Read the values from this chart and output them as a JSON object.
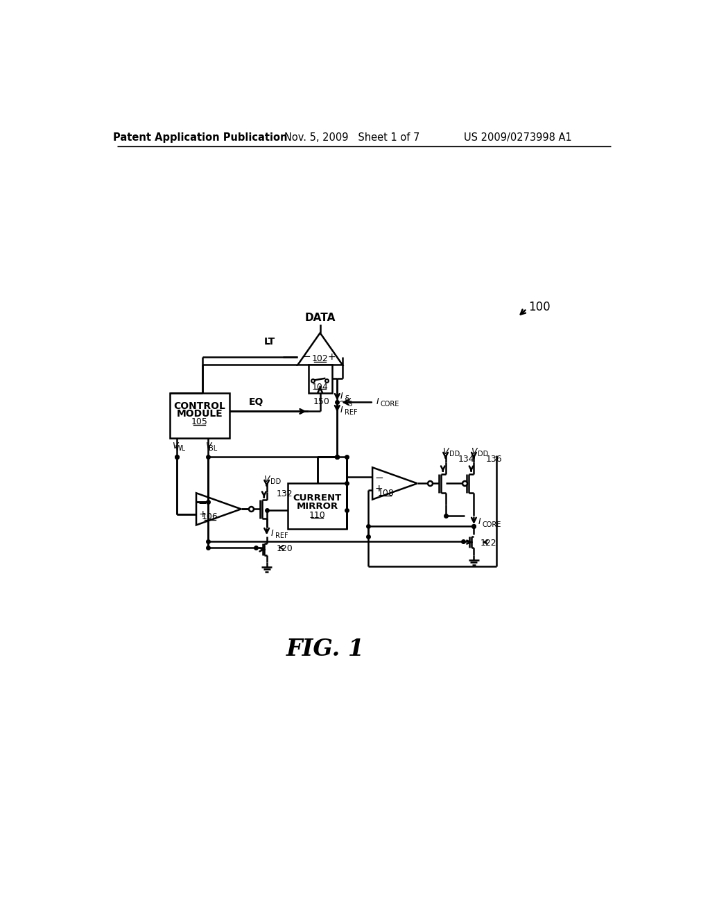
{
  "bg_color": "#ffffff",
  "line_color": "#000000",
  "header_left": "Patent Application Publication",
  "header_mid": "Nov. 5, 2009   Sheet 1 of 7",
  "header_right": "US 2009/0273998 A1"
}
